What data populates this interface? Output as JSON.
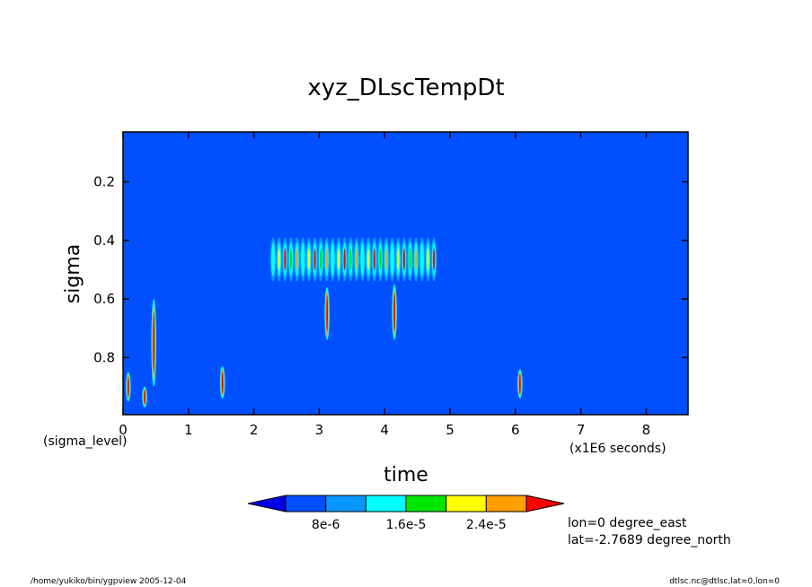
{
  "chart_data": {
    "type": "heatmap",
    "title": "xyz_DLscTempDt",
    "xlabel": "time",
    "ylabel": "sigma",
    "x_unit_note": "(x1E6 seconds)",
    "y_unit_note": "(sigma_level)",
    "xlim": [
      0,
      8.64
    ],
    "ylim": [
      0.03,
      0.995
    ],
    "y_inverted": true,
    "x_ticks": [
      0,
      1,
      2,
      3,
      4,
      5,
      6,
      7,
      8
    ],
    "y_ticks": [
      0.2,
      0.4,
      0.6,
      0.8
    ],
    "grid": false,
    "background_color": "#0050ff",
    "features": [
      {
        "x0": 2.25,
        "x1": 4.8,
        "y0": 0.39,
        "y1": 0.54,
        "kind": "band"
      },
      {
        "x": 3.12,
        "y0": 0.56,
        "y1": 0.74,
        "kind": "streak"
      },
      {
        "x": 4.15,
        "y0": 0.55,
        "y1": 0.74,
        "kind": "streak"
      },
      {
        "x": 0.47,
        "y0": 0.6,
        "y1": 0.9,
        "kind": "streak"
      },
      {
        "x": 1.52,
        "y0": 0.83,
        "y1": 0.94,
        "kind": "streak"
      },
      {
        "x": 6.07,
        "y0": 0.84,
        "y1": 0.94,
        "kind": "streak"
      },
      {
        "x": 0.08,
        "y0": 0.85,
        "y1": 0.95,
        "kind": "streak"
      },
      {
        "x": 0.33,
        "y0": 0.9,
        "y1": 0.97,
        "kind": "streak"
      }
    ],
    "colorbar": {
      "colors": [
        "#0000e6",
        "#0050ff",
        "#0a96ff",
        "#00ffff",
        "#00e600",
        "#ffff00",
        "#ffa000",
        "#ff0000"
      ],
      "labels": [
        "8e-6",
        "1.6e-5",
        "2.4e-5"
      ]
    },
    "annotations": [
      "lon=0 degree_east",
      "lat=-2.7689 degree_north"
    ]
  },
  "footer": {
    "left": "/home/yukiko/bin/ygpview 2005-12-04",
    "right": "dtlsc.nc@dtlsc,lat=0,lon=0"
  }
}
